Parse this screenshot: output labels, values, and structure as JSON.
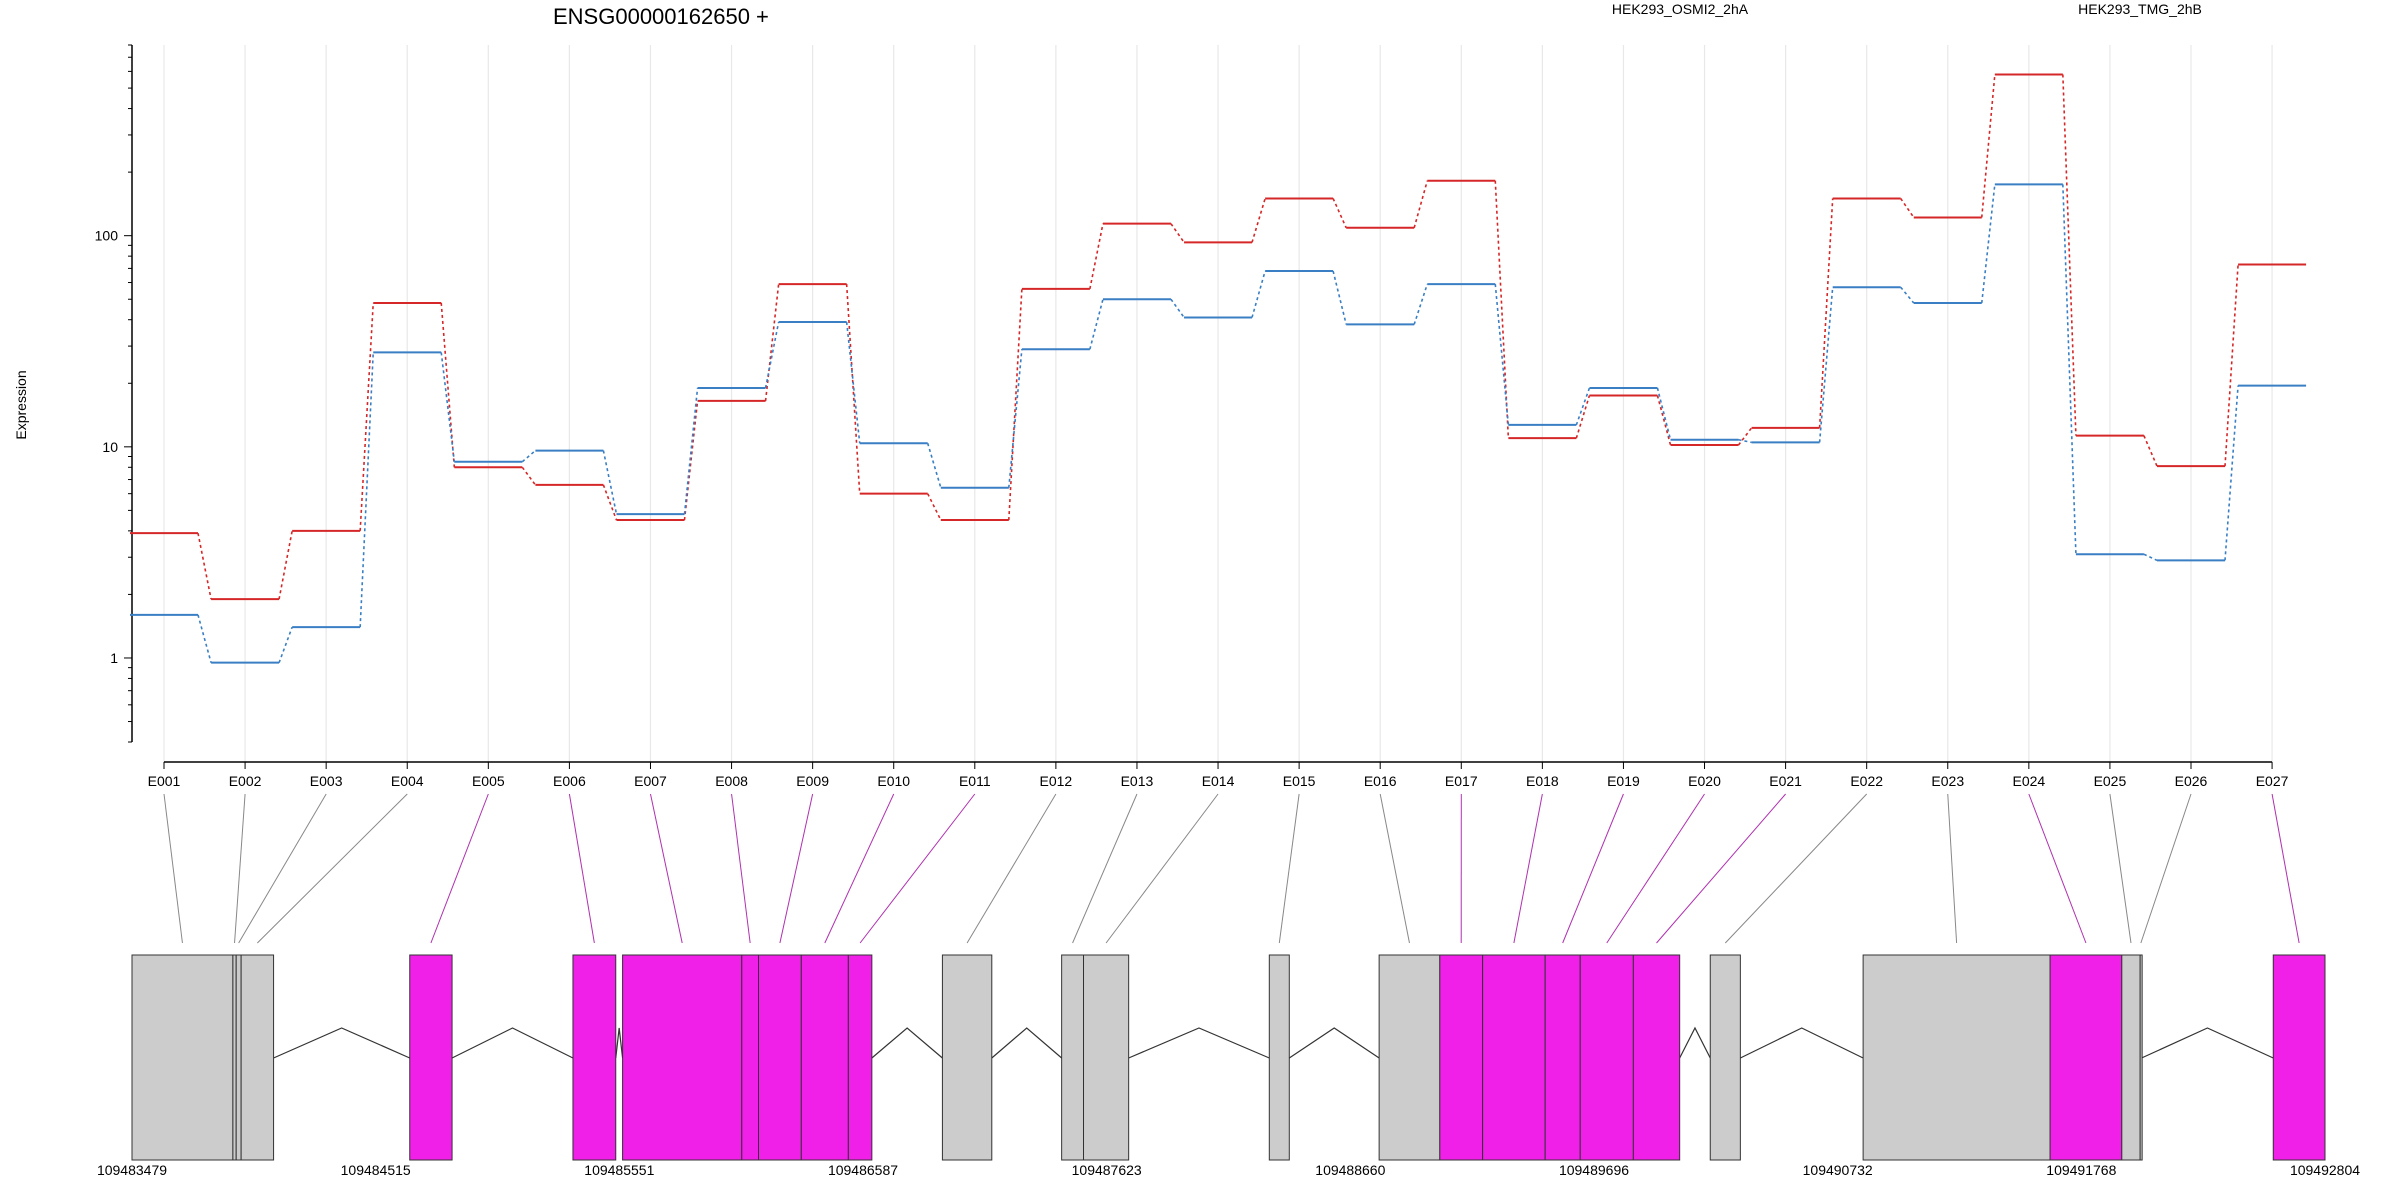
{
  "chart_data": {
    "type": "line",
    "title": "ENSG00000162650 +",
    "ylabel": "Expression",
    "yscale": "log",
    "ylim": [
      0.4,
      800
    ],
    "yticks": [
      {
        "value": 1,
        "label": "1"
      },
      {
        "value": 10,
        "label": "10"
      },
      {
        "value": 100,
        "label": "100"
      }
    ],
    "grid": "vertical",
    "legend_position": "top-right",
    "categories": [
      "E001",
      "E002",
      "E003",
      "E004",
      "E005",
      "E006",
      "E007",
      "E008",
      "E009",
      "E010",
      "E011",
      "E012",
      "E013",
      "E014",
      "E015",
      "E016",
      "E017",
      "E018",
      "E019",
      "E020",
      "E021",
      "E022",
      "E023",
      "E024",
      "E025",
      "E026",
      "E027"
    ],
    "series": [
      {
        "name": "HEK293_OSMI2_2hA",
        "color": "#d62728",
        "values": [
          3.9,
          1.9,
          4.0,
          48,
          8.0,
          6.6,
          4.5,
          16.5,
          59,
          6.0,
          4.5,
          56,
          114,
          93,
          150,
          109,
          182,
          11.0,
          17.5,
          10.2,
          12.3,
          150,
          122,
          580,
          11.3,
          8.1,
          73
        ]
      },
      {
        "name": "HEK293_TMG_2hB",
        "color": "#3a7fc4",
        "values": [
          1.6,
          0.95,
          1.4,
          28,
          8.5,
          9.6,
          4.8,
          19,
          39,
          10.4,
          6.4,
          29,
          50,
          41,
          68,
          38,
          59,
          12.7,
          19,
          10.8,
          10.5,
          57,
          48,
          175,
          3.1,
          2.9,
          19.5
        ]
      }
    ],
    "exon_significant": [
      false,
      false,
      false,
      false,
      true,
      true,
      true,
      true,
      true,
      true,
      true,
      false,
      false,
      false,
      false,
      false,
      true,
      true,
      true,
      true,
      true,
      false,
      false,
      true,
      false,
      false,
      true
    ],
    "gene_model": {
      "coordinate_range": [
        109483479,
        109492804
      ],
      "coordinate_ticks": [
        "109483479",
        "109484515",
        "109485551",
        "109486587",
        "109487623",
        "109488660",
        "109489696",
        "109490732",
        "109491768",
        "109492804"
      ],
      "exons": [
        {
          "id": "E001",
          "start": 109483479,
          "end": 109483908
        },
        {
          "id": "E002",
          "start": 109483908,
          "end": 109483922
        },
        {
          "id": "E003",
          "start": 109483922,
          "end": 109483943
        },
        {
          "id": "E004",
          "start": 109483943,
          "end": 109484081
        },
        {
          "id": "E005",
          "start": 109484660,
          "end": 109484840
        },
        {
          "id": "E006",
          "start": 109485354,
          "end": 109485536
        },
        {
          "id": "E007",
          "start": 109485565,
          "end": 109486072
        },
        {
          "id": "E008",
          "start": 109486072,
          "end": 109486143
        },
        {
          "id": "E009",
          "start": 109486143,
          "end": 109486325
        },
        {
          "id": "E010",
          "start": 109486325,
          "end": 109486525
        },
        {
          "id": "E011",
          "start": 109486525,
          "end": 109486625
        },
        {
          "id": "E012",
          "start": 109486925,
          "end": 109487135
        },
        {
          "id": "E013",
          "start": 109487432,
          "end": 109487525
        },
        {
          "id": "E014",
          "start": 109487525,
          "end": 109487717
        },
        {
          "id": "E015",
          "start": 109488315,
          "end": 109488400
        },
        {
          "id": "E016",
          "start": 109488782,
          "end": 109489040
        },
        {
          "id": "E017",
          "start": 109489040,
          "end": 109489222
        },
        {
          "id": "E018",
          "start": 109489222,
          "end": 109489488
        },
        {
          "id": "E019",
          "start": 109489488,
          "end": 109489637
        },
        {
          "id": "E020",
          "start": 109489637,
          "end": 109489863
        },
        {
          "id": "E021",
          "start": 109489863,
          "end": 109490060
        },
        {
          "id": "E022",
          "start": 109490190,
          "end": 109490318
        },
        {
          "id": "E023",
          "start": 109490840,
          "end": 109491635
        },
        {
          "id": "E024",
          "start": 109491635,
          "end": 109491940
        },
        {
          "id": "E025",
          "start": 109491940,
          "end": 109492018
        },
        {
          "id": "E026",
          "start": 109492018,
          "end": 109492024
        },
        {
          "id": "E027",
          "start": 109492584,
          "end": 109492804
        }
      ]
    }
  },
  "colors": {
    "significant_exon": "#f020e8",
    "normal_exon": "#cccccc",
    "exon_border": "#333333",
    "grid": "#e8e8e8",
    "connector_normal": "#888888",
    "connector_significant": "#b030b0"
  }
}
